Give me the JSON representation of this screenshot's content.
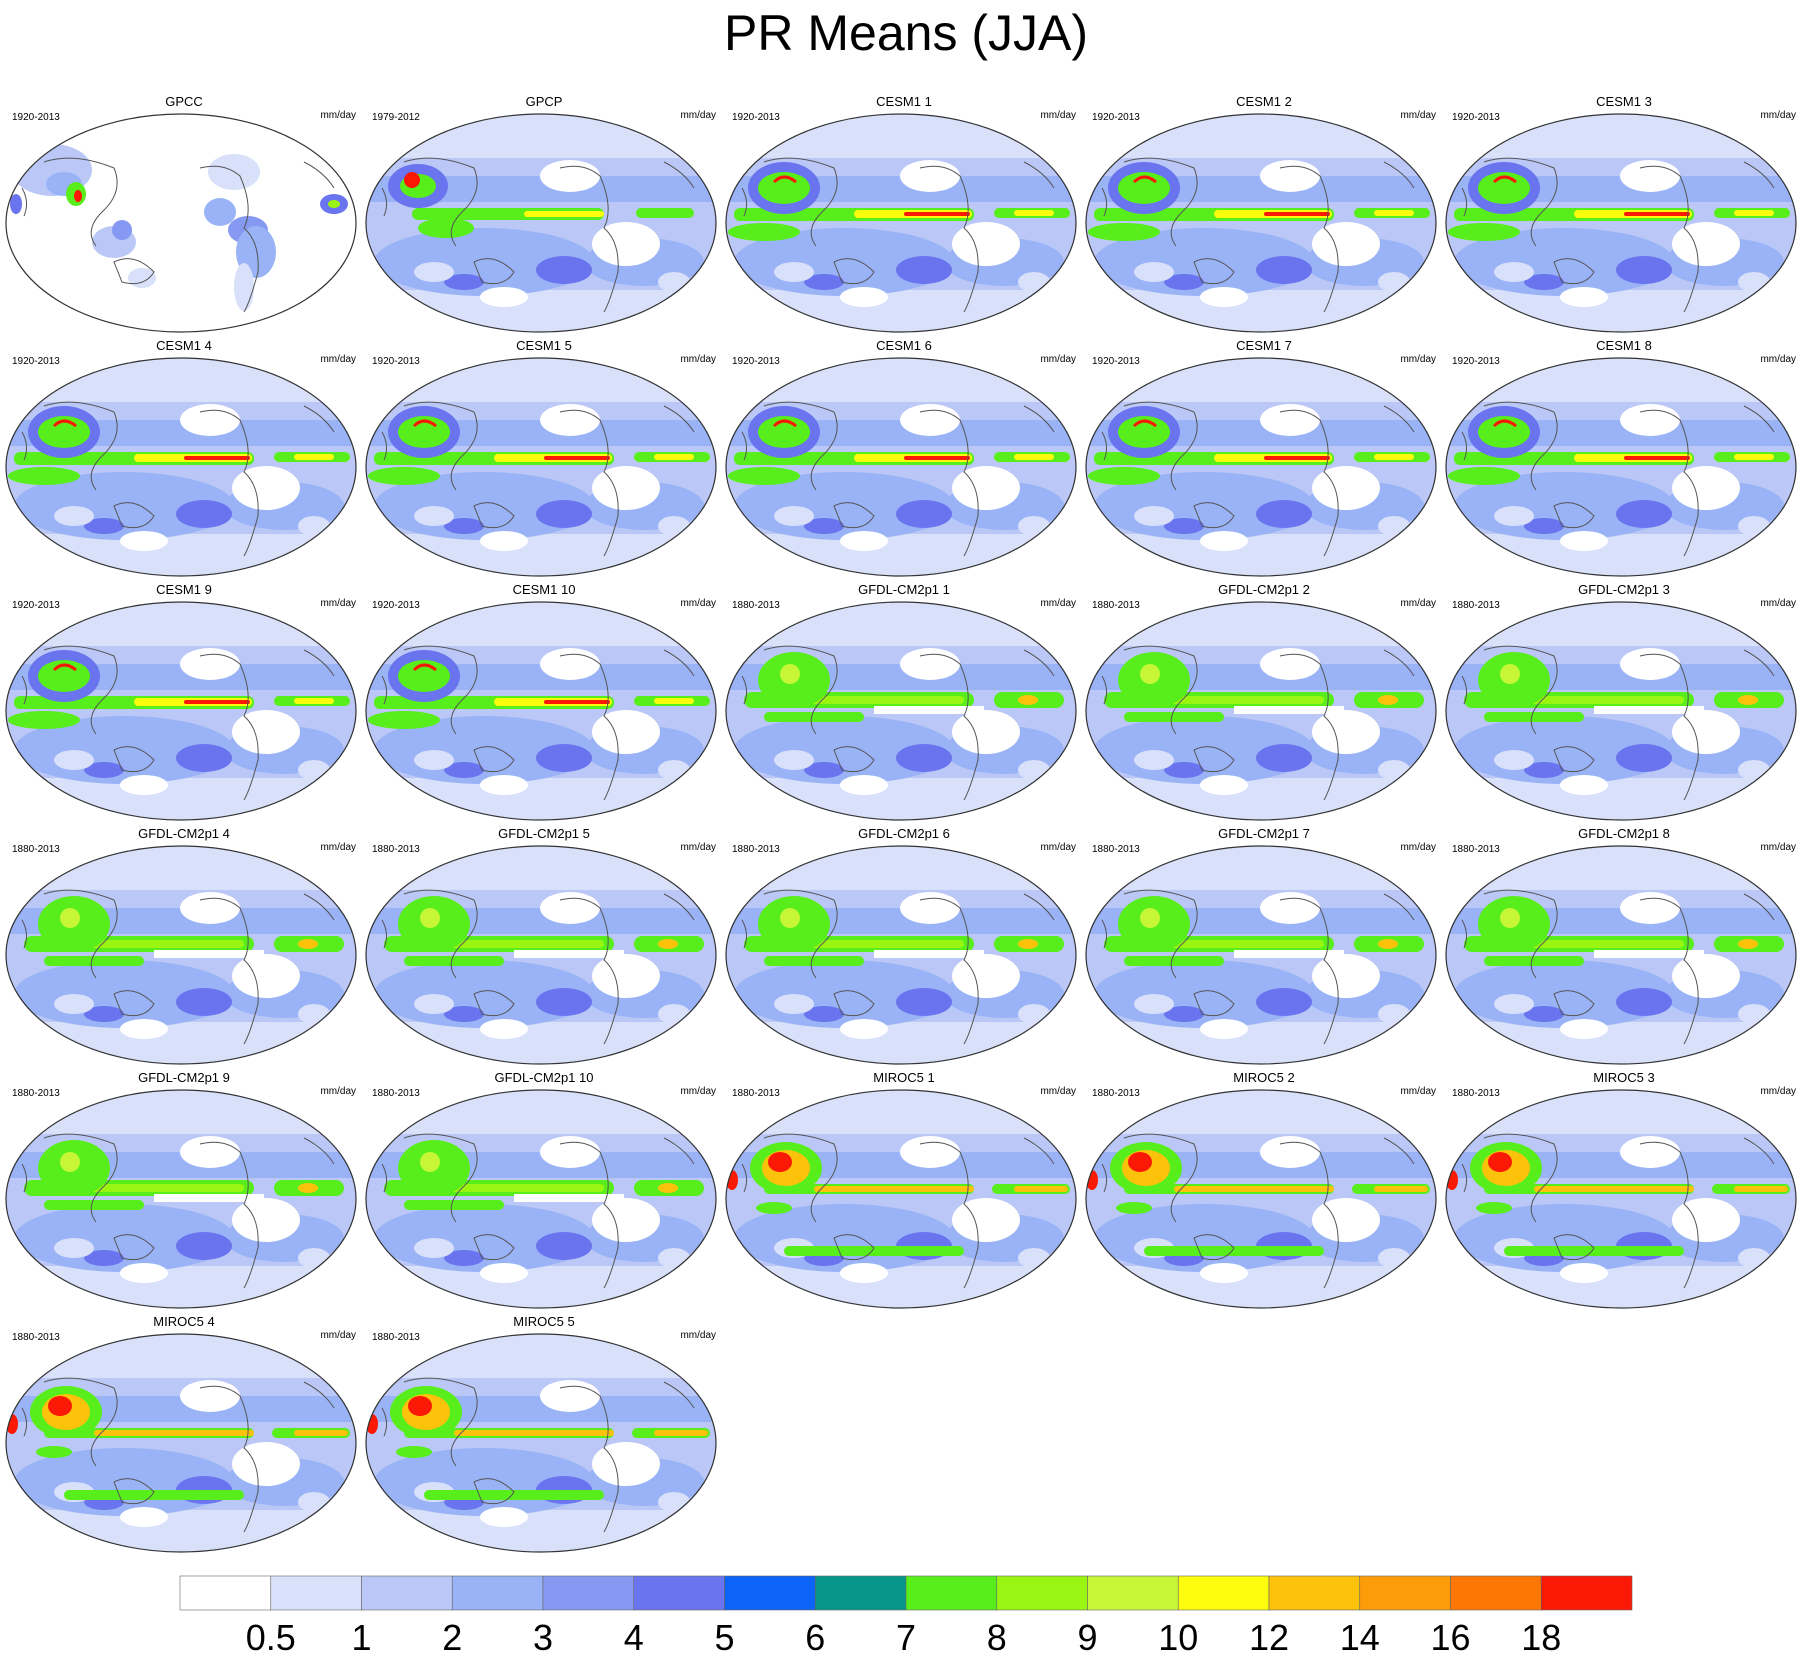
{
  "title": "PR Means (JJA)",
  "chart_data": {
    "type": "heatmap",
    "title": "PR Means (JJA)",
    "units": "mm/day",
    "colorbar": {
      "levels": [
        "0.5",
        "1",
        "2",
        "3",
        "4",
        "5",
        "6",
        "7",
        "8",
        "9",
        "10",
        "12",
        "14",
        "16",
        "18"
      ],
      "colors": [
        "#ffffff",
        "#d8e0fa",
        "#bbc8f7",
        "#99b3f6",
        "#8699f2",
        "#6a74ef",
        "#0b63f7",
        "#079689",
        "#58ee1b",
        "#9bf512",
        "#c7f637",
        "#fdfc0c",
        "#fdc20b",
        "#fd9c09",
        "#fc7706",
        "#fb1805"
      ]
    },
    "panels": [
      {
        "title": "GPCC",
        "period": "1920-2013",
        "units": "mm/day",
        "style": "obs-land"
      },
      {
        "title": "GPCP",
        "period": "1979-2012",
        "units": "mm/day",
        "style": "obs"
      },
      {
        "title": "CESM1 1",
        "period": "1920-2013",
        "units": "mm/day",
        "style": "cesm"
      },
      {
        "title": "CESM1 2",
        "period": "1920-2013",
        "units": "mm/day",
        "style": "cesm"
      },
      {
        "title": "CESM1 3",
        "period": "1920-2013",
        "units": "mm/day",
        "style": "cesm"
      },
      {
        "title": "CESM1 4",
        "period": "1920-2013",
        "units": "mm/day",
        "style": "cesm"
      },
      {
        "title": "CESM1 5",
        "period": "1920-2013",
        "units": "mm/day",
        "style": "cesm"
      },
      {
        "title": "CESM1 6",
        "period": "1920-2013",
        "units": "mm/day",
        "style": "cesm"
      },
      {
        "title": "CESM1 7",
        "period": "1920-2013",
        "units": "mm/day",
        "style": "cesm"
      },
      {
        "title": "CESM1 8",
        "period": "1920-2013",
        "units": "mm/day",
        "style": "cesm"
      },
      {
        "title": "CESM1 9",
        "period": "1920-2013",
        "units": "mm/day",
        "style": "cesm"
      },
      {
        "title": "CESM1 10",
        "period": "1920-2013",
        "units": "mm/day",
        "style": "cesm"
      },
      {
        "title": "GFDL-CM2p1 1",
        "period": "1880-2013",
        "units": "mm/day",
        "style": "gfdl"
      },
      {
        "title": "GFDL-CM2p1 2",
        "period": "1880-2013",
        "units": "mm/day",
        "style": "gfdl"
      },
      {
        "title": "GFDL-CM2p1 3",
        "period": "1880-2013",
        "units": "mm/day",
        "style": "gfdl"
      },
      {
        "title": "GFDL-CM2p1 4",
        "period": "1880-2013",
        "units": "mm/day",
        "style": "gfdl"
      },
      {
        "title": "GFDL-CM2p1 5",
        "period": "1880-2013",
        "units": "mm/day",
        "style": "gfdl"
      },
      {
        "title": "GFDL-CM2p1 6",
        "period": "1880-2013",
        "units": "mm/day",
        "style": "gfdl"
      },
      {
        "title": "GFDL-CM2p1 7",
        "period": "1880-2013",
        "units": "mm/day",
        "style": "gfdl"
      },
      {
        "title": "GFDL-CM2p1 8",
        "period": "1880-2013",
        "units": "mm/day",
        "style": "gfdl"
      },
      {
        "title": "GFDL-CM2p1 9",
        "period": "1880-2013",
        "units": "mm/day",
        "style": "gfdl"
      },
      {
        "title": "GFDL-CM2p1 10",
        "period": "1880-2013",
        "units": "mm/day",
        "style": "gfdl"
      },
      {
        "title": "MIROC5 1",
        "period": "1880-2013",
        "units": "mm/day",
        "style": "miroc"
      },
      {
        "title": "MIROC5 2",
        "period": "1880-2013",
        "units": "mm/day",
        "style": "miroc"
      },
      {
        "title": "MIROC5 3",
        "period": "1880-2013",
        "units": "mm/day",
        "style": "miroc"
      },
      {
        "title": "MIROC5 4",
        "period": "1880-2013",
        "units": "mm/day",
        "style": "miroc"
      },
      {
        "title": "MIROC5 5",
        "period": "1880-2013",
        "units": "mm/day",
        "style": "miroc"
      }
    ]
  }
}
